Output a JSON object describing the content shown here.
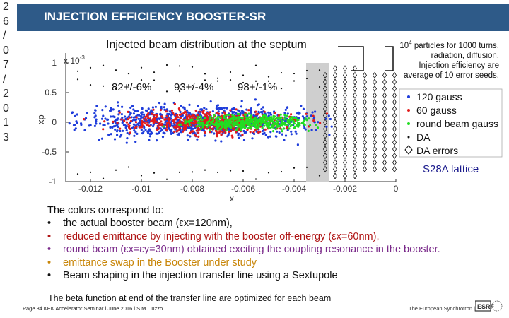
{
  "date_vertical": [
    "2",
    "6",
    "/",
    "0",
    "7",
    "/",
    "2",
    "0",
    "1",
    "3"
  ],
  "header": {
    "title": "INJECTION EFFICIENCY BOOSTER-SR"
  },
  "plot": {
    "title": "Injected beam distribution at the septum",
    "y_exponent": "x 10",
    "y_exponent_power": "-3",
    "xlabel": "x",
    "ylabel": "xp",
    "yticks": [
      "1",
      "0.5",
      "0",
      "-0.5",
      "-1"
    ],
    "xticks": [
      "-0.012",
      "-0.01",
      "-0.008",
      "-0.006",
      "-0.004",
      "-0.002",
      "0"
    ],
    "efficiencies": [
      "82+/-6%",
      "93+/-4%",
      "98+/-1%"
    ],
    "legend": [
      {
        "label": "120 gauss",
        "color": "#1f3ddb"
      },
      {
        "label": "60 gauss",
        "color": "#e21b1b"
      },
      {
        "label": "round beam gauss",
        "color": "#22dd22"
      },
      {
        "label": "DA",
        "color": "#111111"
      },
      {
        "label": "DA errors",
        "color": "#111111"
      }
    ]
  },
  "note": {
    "line1_base": "10",
    "line1_power": "4",
    "line1_rest": " particles for 1000 turns,",
    "line2": "radiation, diffusion.",
    "line3": "Injection efficiency are",
    "line4": "average of 10 error seeds."
  },
  "lattice_label": "S28A lattice",
  "body": {
    "intro": "The colors correspond to:",
    "bullets": [
      {
        "text": "the actual booster beam (εx=120nm),",
        "color": "#111111"
      },
      {
        "text": "reduced emittance by injecting with the booster off-energy (εx=60nm),",
        "color": "#b01616"
      },
      {
        "text": "round beam (εx=εy=30nm) obtained exciting the coupling resonance in the booster.",
        "color": "#7a2a8a"
      },
      {
        "text": "emittance swap in the Booster under study",
        "color": "#c8860a"
      },
      {
        "text": "Beam shaping in the injection transfer line using a Sextupole",
        "color": "#111111"
      }
    ],
    "bullet_char": "•",
    "beta_line": "The beta function at end of the transfer line are optimized for each beam"
  },
  "footer": {
    "page": "Page 34",
    "info": "l KEK Accelerator Seminar l June 2016 l S.M.Liuzzo",
    "right": "The European Synchrotron |"
  }
}
